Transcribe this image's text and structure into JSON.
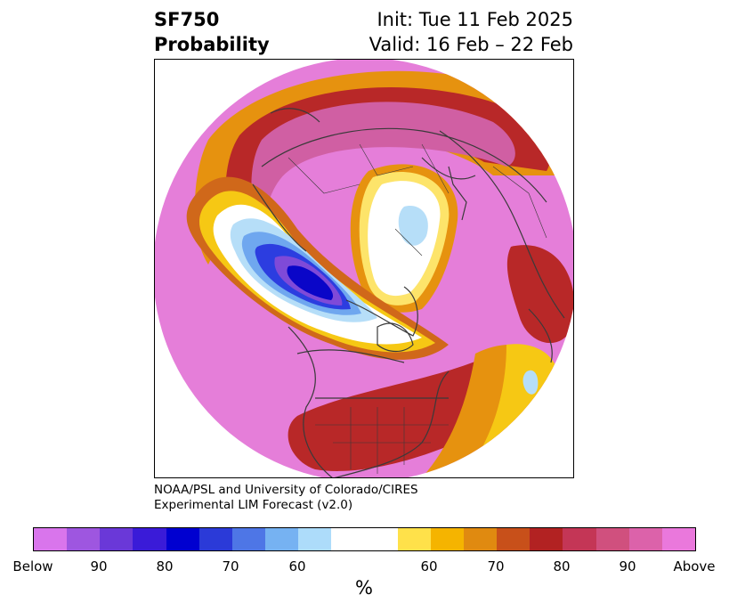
{
  "title": {
    "variable": "SF750",
    "product": "Probability",
    "init": "Init: Tue 11 Feb 2025",
    "valid": "Valid: 16 Feb – 22 Feb"
  },
  "credit": {
    "line1": "NOAA/PSL and University of Colorado/CIRES",
    "line2": "Experimental LIM Forecast (v2.0)"
  },
  "colorbar": {
    "unit_label": "%",
    "colors": [
      "#d975ec",
      "#9e56e0",
      "#6a38d8",
      "#3a1bd8",
      "#0000d0",
      "#2b3ad8",
      "#4e76e6",
      "#76b2f2",
      "#addcfa",
      "#ffffff",
      "#ffe14a",
      "#f5b400",
      "#e08a10",
      "#c8501a",
      "#b22222",
      "#c43656",
      "#d0507e",
      "#dc62aa",
      "#ea78dc"
    ],
    "ticks": [
      "Below",
      "90",
      "80",
      "70",
      "60",
      "60",
      "70",
      "80",
      "90",
      "Above"
    ]
  },
  "map_colors": {
    "above_high": "#e57ed9",
    "above_mid": "#d05fa3",
    "red": "#b82828",
    "dark_orange": "#d0681a",
    "orange": "#e6920f",
    "yellow": "#f6c814",
    "light_yellow": "#fde46a",
    "below_light": "#b6def8",
    "below_blue": "#6fa7ef",
    "below_royal": "#2c3de0",
    "below_dark": "#0a06c8",
    "below_purple": "#7f4ad8",
    "coast": "#3a3a3a"
  }
}
